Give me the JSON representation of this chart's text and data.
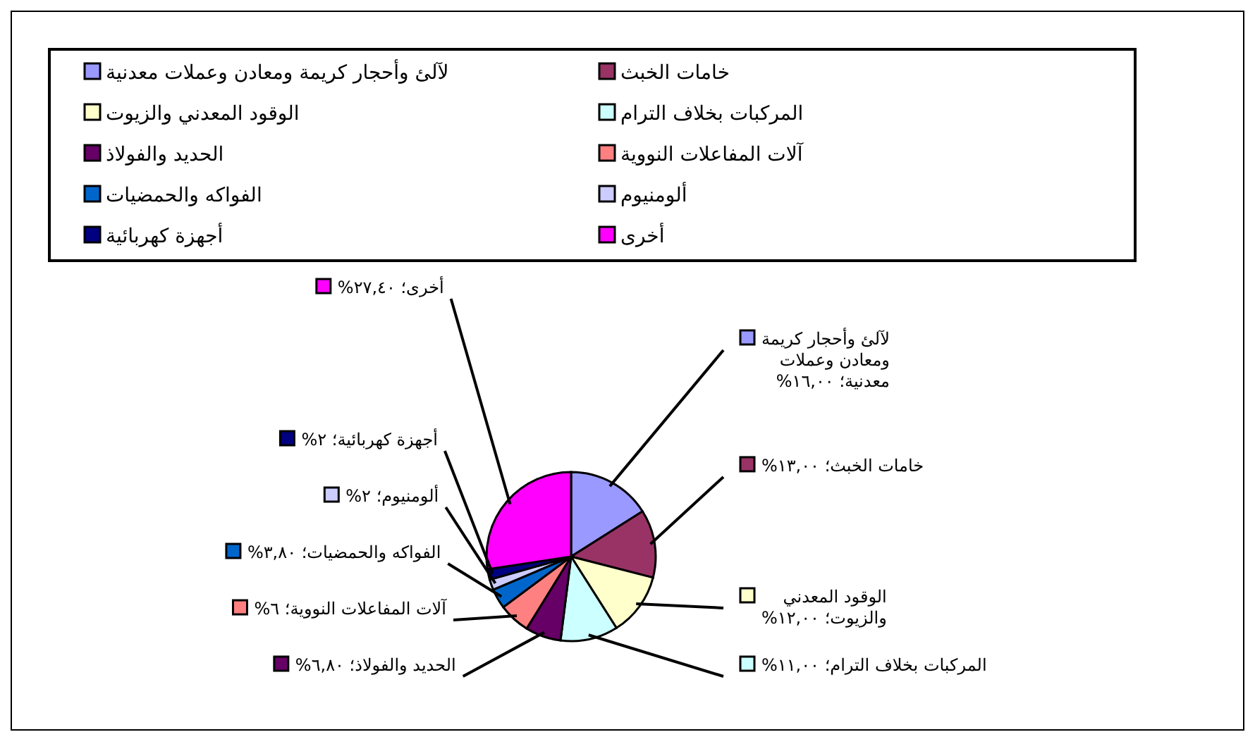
{
  "chart_data": {
    "type": "pie",
    "categories": [
      "لآلئ وأحجار كريمة ومعادن وعملات معدنية",
      "خامات الخبث",
      "الوقود المعدني والزيوت",
      "المركبات بخلاف الترام",
      "الحديد والفولاذ",
      "آلات المفاعلات النووية",
      "الفواكه والحمضيات",
      "ألومنيوم",
      "أجهزة كهربائية",
      "أخرى"
    ],
    "values": [
      16,
      13,
      12,
      11,
      6.8,
      6,
      3.8,
      2,
      2,
      27.4
    ],
    "colors": [
      "#9999ff",
      "#993366",
      "#ffffcc",
      "#ccffff",
      "#660066",
      "#ff8080",
      "#0066cc",
      "#ccccff",
      "#000080",
      "#ff00ff"
    ],
    "value_labels": [
      "؛ ١٦,٠٠%",
      "؛ ١٣,٠٠%",
      "؛ ١٢,٠٠%",
      "؛ ١١,٠٠%",
      "؛ ٦,٨٠%",
      "؛ ٦%",
      "؛ ٣,٨٠%",
      "؛ ٢%",
      "؛ ٢%",
      "؛ ٢٧,٤٠%"
    ],
    "legend": "top"
  }
}
